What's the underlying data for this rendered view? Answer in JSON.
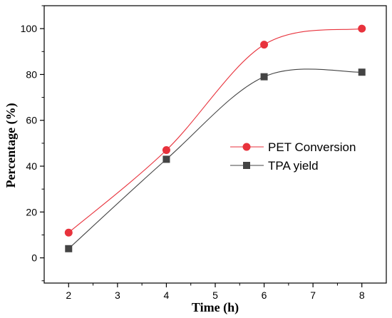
{
  "chart_data": {
    "type": "line",
    "title": "",
    "xlabel": "Time (h)",
    "ylabel": "Percentage (%)",
    "xlim": [
      1.5,
      8.5
    ],
    "ylim": [
      -11,
      110
    ],
    "x_ticks": [
      "2",
      "3",
      "4",
      "5",
      "6",
      "7",
      "8"
    ],
    "y_ticks": [
      "0",
      "20",
      "40",
      "60",
      "80",
      "100"
    ],
    "x_tick_values": [
      2,
      3,
      4,
      5,
      6,
      7,
      8
    ],
    "y_tick_values": [
      0,
      20,
      40,
      60,
      80,
      100
    ],
    "x": [
      2,
      4,
      6,
      8
    ],
    "grid": false,
    "legend_position": "right",
    "series": [
      {
        "name": "PET Conversion",
        "values": [
          11,
          47,
          93,
          100
        ],
        "color": "#e8323c",
        "marker": "circle"
      },
      {
        "name": "TPA yield",
        "values": [
          4,
          43,
          79,
          81
        ],
        "color": "#444444",
        "marker": "square"
      }
    ]
  }
}
